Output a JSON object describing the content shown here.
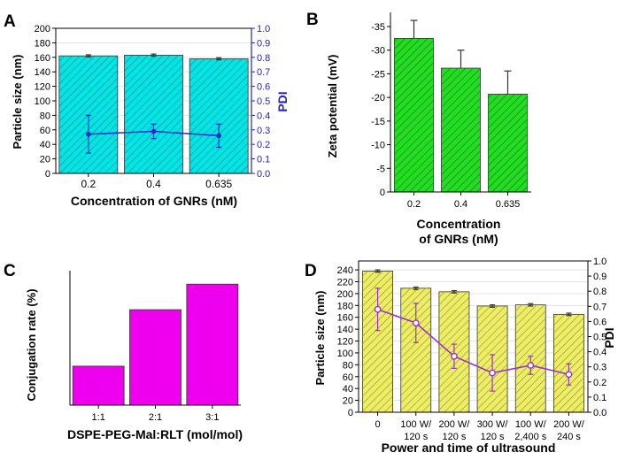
{
  "chart_data": [
    {
      "panel_label": "A",
      "type": "bar",
      "categories": [
        "0.2",
        "0.4",
        "0.635"
      ],
      "series": [
        {
          "name": "Particle size",
          "axis": "left",
          "values": [
            162,
            163,
            158
          ],
          "errors": [
            1.5,
            1.5,
            1.5
          ]
        },
        {
          "name": "PDI",
          "axis": "right",
          "type": "line",
          "values": [
            0.27,
            0.29,
            0.26
          ],
          "errors": [
            0.13,
            0.05,
            0.08
          ]
        }
      ],
      "xlabel": "Concentration of GNRs (nM)",
      "ylabel": "Particle size (nm)",
      "ylim": [
        0,
        200
      ],
      "yticks": [
        "0",
        "20",
        "40",
        "60",
        "80",
        "100",
        "120",
        "140",
        "160",
        "180",
        "200"
      ],
      "y2label": "PDI",
      "y2lim": [
        0,
        1.0
      ],
      "y2ticks": [
        "0.0",
        "0.1",
        "0.2",
        "0.3",
        "0.4",
        "0.5",
        "0.6",
        "0.7",
        "0.8",
        "0.9",
        "1.0"
      ],
      "bar_color": "#00e5e5",
      "line_color": "#2828d0",
      "axis2_color": "#2323c8"
    },
    {
      "panel_label": "B",
      "type": "bar",
      "categories": [
        "0.2",
        "0.4",
        "0.635"
      ],
      "values": [
        -32.5,
        -26.2,
        -20.7
      ],
      "errors": [
        3.8,
        3.8,
        4.9
      ],
      "xlabel_lines": [
        "Concentration",
        "of GNRs (nM)"
      ],
      "ylabel": "Zeta potential (mV)",
      "ylim": [
        0,
        -38
      ],
      "yticks": [
        "0",
        "-5",
        "-10",
        "-15",
        "-20",
        "-25",
        "-30",
        "-35"
      ],
      "bar_color": "#22dd22"
    },
    {
      "panel_label": "C",
      "type": "bar",
      "categories": [
        "1:1",
        "2:1",
        "3:1"
      ],
      "values": [
        29,
        71,
        90
      ],
      "xlabel": "DSPE-PEG-Mal:RLT (mol/mol)",
      "ylabel": "Conjugation rate (%)",
      "ylim": [
        0,
        100
      ],
      "bar_color": "#ee00ee"
    },
    {
      "panel_label": "D",
      "type": "bar",
      "categories": [
        [
          "0"
        ],
        [
          "100 W/",
          "120 s"
        ],
        [
          "200 W/",
          "120 s"
        ],
        [
          "300 W/",
          "120 s"
        ],
        [
          "100 W/",
          "2,400 s"
        ],
        [
          "200 W/",
          "240 s"
        ]
      ],
      "series": [
        {
          "name": "Particle size",
          "axis": "left",
          "values": [
            238,
            209,
            203,
            179,
            181,
            165
          ],
          "errors": [
            2,
            2,
            2,
            2,
            2,
            2
          ]
        },
        {
          "name": "PDI",
          "axis": "right",
          "type": "line",
          "values": [
            0.68,
            0.59,
            0.37,
            0.26,
            0.31,
            0.25
          ],
          "errors": [
            0.14,
            0.13,
            0.08,
            0.12,
            0.06,
            0.07
          ]
        }
      ],
      "xlabel": "Power and time of ultrasound",
      "ylabel": "Particle size (nm)",
      "ylim": [
        0,
        255
      ],
      "yticks": [
        "0",
        "20",
        "40",
        "60",
        "80",
        "100",
        "120",
        "140",
        "160",
        "180",
        "200",
        "220",
        "240"
      ],
      "y2label": "PDI",
      "y2lim": [
        0,
        1.0
      ],
      "y2ticks": [
        "0.0",
        "0.1",
        "0.2",
        "0.3",
        "0.4",
        "0.5",
        "0.6",
        "0.7",
        "0.8",
        "0.9",
        "1.0"
      ],
      "bar_color": "#eded66",
      "line_color": "#9933cc"
    }
  ]
}
